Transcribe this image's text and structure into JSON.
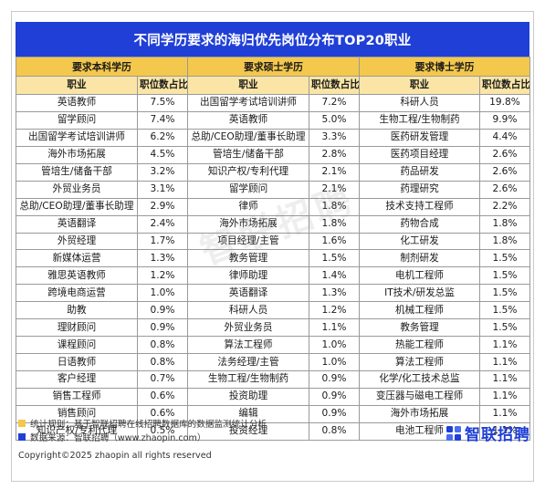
{
  "title": "不同学历要求的海归优先岗位分布TOP20职业",
  "groups": {
    "bachelor": "要求本科学历",
    "master": "要求硕士学历",
    "doctor": "要求博士学历"
  },
  "headers": {
    "job": "职业",
    "share": "职位数占比"
  },
  "rows": [
    [
      "英语教师",
      "7.5%",
      "出国留学考试培训讲师",
      "7.2%",
      "科研人员",
      "19.8%"
    ],
    [
      "留学顾问",
      "7.4%",
      "英语教师",
      "5.0%",
      "生物工程/生物制药",
      "9.9%"
    ],
    [
      "出国留学考试培训讲师",
      "6.2%",
      "总助/CEO助理/董事长助理",
      "3.3%",
      "医药研发管理",
      "4.4%"
    ],
    [
      "海外市场拓展",
      "4.5%",
      "管培生/储备干部",
      "2.8%",
      "医药项目经理",
      "2.6%"
    ],
    [
      "管培生/储备干部",
      "3.2%",
      "知识产权/专利代理",
      "2.1%",
      "药品研发",
      "2.6%"
    ],
    [
      "外贸业务员",
      "3.1%",
      "留学顾问",
      "2.1%",
      "药理研究",
      "2.6%"
    ],
    [
      "总助/CEO助理/董事长助理",
      "2.9%",
      "律师",
      "1.8%",
      "技术支持工程师",
      "2.2%"
    ],
    [
      "英语翻译",
      "2.4%",
      "海外市场拓展",
      "1.8%",
      "药物合成",
      "1.8%"
    ],
    [
      "外贸经理",
      "1.7%",
      "项目经理/主管",
      "1.6%",
      "化工研发",
      "1.8%"
    ],
    [
      "新媒体运营",
      "1.3%",
      "教务管理",
      "1.5%",
      "制剂研发",
      "1.5%"
    ],
    [
      "雅思英语教师",
      "1.2%",
      "律师助理",
      "1.4%",
      "电机工程师",
      "1.5%"
    ],
    [
      "跨境电商运营",
      "1.0%",
      "英语翻译",
      "1.3%",
      "IT技术/研发总监",
      "1.5%"
    ],
    [
      "助教",
      "0.9%",
      "科研人员",
      "1.2%",
      "机械工程师",
      "1.5%"
    ],
    [
      "理财顾问",
      "0.9%",
      "外贸业务员",
      "1.1%",
      "教务管理",
      "1.5%"
    ],
    [
      "课程顾问",
      "0.8%",
      "算法工程师",
      "1.0%",
      "热能工程师",
      "1.1%"
    ],
    [
      "日语教师",
      "0.8%",
      "法务经理/主管",
      "1.0%",
      "算法工程师",
      "1.1%"
    ],
    [
      "客户经理",
      "0.7%",
      "生物工程/生物制药",
      "0.9%",
      "化学/化工技术总监",
      "1.1%"
    ],
    [
      "销售工程师",
      "0.6%",
      "投资助理",
      "0.9%",
      "变压器与磁电工程师",
      "1.1%"
    ],
    [
      "销售顾问",
      "0.6%",
      "编辑",
      "0.9%",
      "海外市场拓展",
      "1.1%"
    ],
    [
      "知识产权/专利代理",
      "0.5%",
      "投资经理",
      "0.8%",
      "电池工程师",
      "1.1%"
    ]
  ],
  "watermark": "智联招聘",
  "notes": {
    "rule": "统计规则：基于智联招聘在线招聘数据库的数据监测统计分析",
    "source": "数据来源：智联招聘（www.zhaopin.com）"
  },
  "copyright": "Copyright©2025 zhaopin all rights reserved",
  "logo_text": "智联招聘",
  "colors": {
    "title_bg": "#1f3fd6",
    "group_header": "#f4c84d",
    "col_header": "#fae5a6"
  }
}
